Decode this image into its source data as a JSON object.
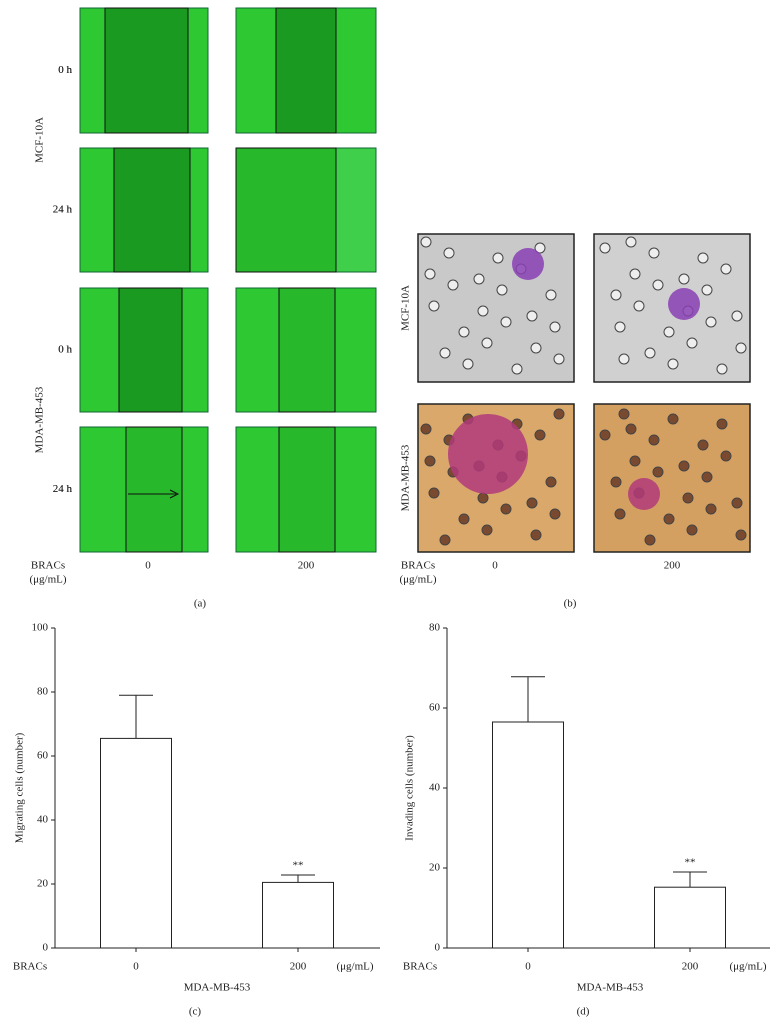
{
  "panel_a": {
    "groups": [
      "MCF-10A",
      "MDA-MB-453"
    ],
    "times": [
      "0 h",
      "24 h",
      "0 h",
      "24 h"
    ],
    "treatment": "BRACs",
    "unit": "(μg/mL)",
    "doses": [
      "0",
      "200"
    ],
    "caption": "(a)"
  },
  "panel_b": {
    "groups": [
      "MCF-10A",
      "MDA-MB-453"
    ],
    "treatment": "BRACs",
    "unit": "(μg/mL)",
    "doses": [
      "0",
      "200"
    ],
    "caption": "(b)"
  },
  "chart_data": [
    {
      "type": "bar",
      "y_label": "Migrating cells (number)",
      "x_prefix": "BRACs",
      "x_unit": "(μg/mL)",
      "x_label": "MDA-MB-453",
      "caption": "(c)",
      "categories": [
        "0",
        "200"
      ],
      "values": [
        65.5,
        20.5
      ],
      "errors": [
        13.5,
        2.3
      ],
      "annotation": "**",
      "color": "#ffffff",
      "ylim": [
        0,
        100
      ],
      "yticks": [
        0,
        20,
        40,
        60,
        80,
        100
      ]
    },
    {
      "type": "bar",
      "y_label": "Invading cells (number)",
      "x_prefix": "BRACs",
      "x_unit": "(μg/mL)",
      "x_label": "MDA-MB-453",
      "caption": "(d)",
      "categories": [
        "0",
        "200"
      ],
      "values": [
        56.5,
        15.2
      ],
      "errors": [
        11.3,
        3.8
      ],
      "annotation": "**",
      "color": "#ffffff",
      "ylim": [
        0,
        80
      ],
      "yticks": [
        0,
        20,
        40,
        60,
        80
      ]
    }
  ]
}
